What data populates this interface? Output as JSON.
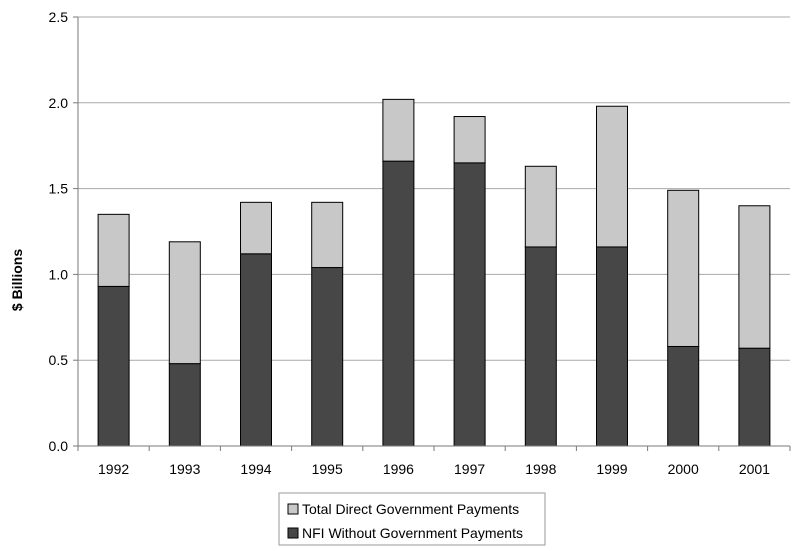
{
  "chart_data": {
    "type": "bar",
    "stacked": true,
    "title": "",
    "xlabel": "",
    "ylabel": "$ Billions",
    "ylim": [
      0,
      2.5
    ],
    "y_ticks": [
      "0.0",
      "0.5",
      "1.0",
      "1.5",
      "2.0",
      "2.5"
    ],
    "y_tick_values": [
      0,
      0.5,
      1.0,
      1.5,
      2.0,
      2.5
    ],
    "grid": true,
    "legend_placement": "bottom",
    "categories": [
      "1992",
      "1993",
      "1994",
      "1995",
      "1996",
      "1997",
      "1998",
      "1999",
      "2000",
      "2001"
    ],
    "series": [
      {
        "name": "NFI Without Government Payments",
        "color": "#474747",
        "values": [
          0.93,
          0.48,
          1.12,
          1.04,
          1.66,
          1.65,
          1.16,
          1.16,
          0.58,
          0.57
        ]
      },
      {
        "name": "Total Direct Government Payments",
        "color": "#c8c8c8",
        "values": [
          0.42,
          0.71,
          0.3,
          0.38,
          0.36,
          0.27,
          0.47,
          0.82,
          0.91,
          0.83
        ]
      }
    ],
    "legend_order": [
      1,
      0
    ]
  }
}
